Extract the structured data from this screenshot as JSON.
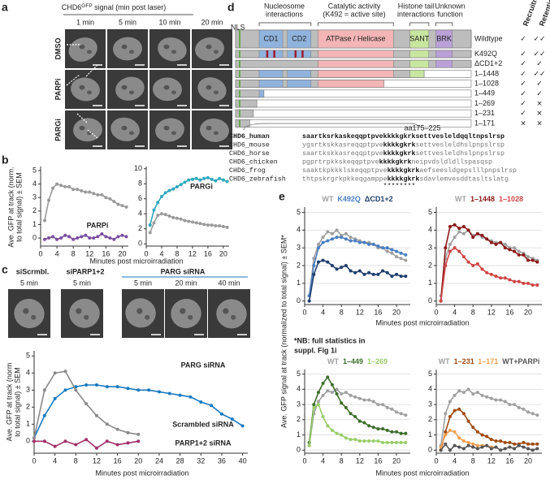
{
  "panels": {
    "a": "a",
    "b": "b",
    "c": "c",
    "d": "d",
    "e": "e"
  },
  "panel_a": {
    "title_main": "CHD6",
    "title_sup": "GFP",
    "title_rest": " signal (min post laser)",
    "columns": [
      "1 min",
      "5 min",
      "10 min",
      "20 min"
    ],
    "rows": [
      {
        "label": "DMSO",
        "color": "#888888"
      },
      {
        "label": "PARPi",
        "color": "#7b4fa0"
      },
      {
        "label": "PARGi",
        "color": "#2fa8bc"
      }
    ]
  },
  "panel_c": {
    "groups": [
      {
        "label": "siScrmbl.",
        "color": "#222222"
      },
      {
        "label": "siPARP1+2",
        "color": "#a0306a"
      },
      {
        "label": "PARG siRNA",
        "color": "#1a7ac0"
      }
    ],
    "image_labels": [
      "5 min",
      "5 min",
      "5 min",
      "20 min",
      "40 min"
    ]
  },
  "panel_d": {
    "nls": "NLS",
    "annotations": [
      [
        "Nucleosome",
        "interactions"
      ],
      [
        "Catalytic activity",
        "(K492 = active site)"
      ],
      [
        "Histone tail",
        "interactions"
      ],
      [
        "Unknown",
        "function"
      ]
    ],
    "domains": [
      "CD1",
      "CD2",
      "ATPase / Helicase",
      "SANT",
      "BRK"
    ],
    "columns": [
      "Recruitment",
      "Retention"
    ],
    "constructs": [
      {
        "name": "Wildtype",
        "recruitment": "✓",
        "retention": "✓✓"
      },
      {
        "name": "K492Q",
        "recruitment": "✓",
        "retention": "✓✓"
      },
      {
        "name": "ΔCD1+2",
        "recruitment": "✓",
        "retention": "✓"
      },
      {
        "name": "1–1448",
        "recruitment": "✓",
        "retention": "✓✓"
      },
      {
        "name": "1–1028",
        "recruitment": "✓",
        "retention": "✓"
      },
      {
        "name": "1–449",
        "recruitment": "✓",
        "retention": "✓"
      },
      {
        "name": "1–269",
        "recruitment": "✓",
        "retention": "×"
      },
      {
        "name": "1–231",
        "recruitment": "✓",
        "retention": "×"
      },
      {
        "name": "1–171",
        "recruitment": "×",
        "retention": "×"
      }
    ],
    "alignment": {
      "range": "aa175–225",
      "species": [
        {
          "name": "CHD6_human",
          "sequence": [
            "saartksrkaskeqqptpve",
            "kkkkgkrk",
            "settvesleldqqltnpslrsp"
          ]
        },
        {
          "name": "CHD6_mouse",
          "sequence": [
            "ygsrtkskkasreqqptpve",
            "kkkkgkrk",
            "settvesleldhslpnpslrsp"
          ]
        },
        {
          "name": "CHD6_horse",
          "sequence": [
            "saartkskkasreqqptpve",
            "kkkkgkrk",
            "settvesleldhslpnpslrsp"
          ]
        },
        {
          "name": "CHD6_chicken",
          "sequence": [
            "pgprtrpkkskeqqptpve",
            "kkkkgkrk",
            "neipvdsldldllspasqsp"
          ]
        },
        {
          "name": "CHD6_frog",
          "sequence": [
            "saaktkpkkklskeqqptpve",
            "kkkkgkrk",
            "aefseesldgepslllpnpslrsp"
          ]
        },
        {
          "name": "CHD6_zebrafish",
          "sequence": [
            "thtpskrgrkpkkeqgamppe",
            "kkkkgkrk",
            "sdavlemvesddtasltslatg"
          ]
        }
      ],
      "conservation": "********"
    }
  },
  "note": {
    "line1": "*NB: full statistics in",
    "line2": "suppl. Fig 1i"
  },
  "chart_data": [
    {
      "type": "line",
      "ylabel": [
        "Ave. GFP at track (norm.",
        "to total signal) ± SEM"
      ],
      "xlabel": "Minutes post microirradiation",
      "x": [
        1,
        2,
        3,
        4,
        5,
        6,
        7,
        8,
        9,
        10,
        11,
        12,
        13,
        14,
        15,
        16,
        17,
        18,
        19,
        20,
        21
      ],
      "xlim": [
        0,
        21.5
      ],
      "xticks": [
        0,
        4,
        8,
        12,
        16,
        20
      ],
      "ylim": [
        -0.6,
        5.3
      ],
      "yticks": [
        0,
        1,
        2,
        3,
        4,
        5
      ],
      "grid": false,
      "series": [
        {
          "color": "#9a9a9a",
          "values": [
            1.3,
            2.8,
            3.7,
            4.0,
            3.9,
            3.8,
            3.8,
            3.6,
            3.6,
            3.5,
            3.4,
            3.4,
            3.3,
            3.2,
            3.2,
            3.0,
            2.9,
            2.7,
            2.5,
            2.4,
            2.3
          ]
        },
        {
          "name": "PARPi",
          "color": "#7b4fa0",
          "values": [
            -0.1,
            0,
            0.1,
            -0.1,
            0,
            0.2,
            0.1,
            -0.1,
            0,
            0.1,
            0.2,
            0,
            0,
            0.1,
            0.3,
            0.1,
            0,
            -0.1,
            0.1,
            0.2,
            0.1
          ]
        }
      ]
    },
    {
      "type": "line",
      "x": [
        1,
        2,
        3,
        4,
        5,
        6,
        7,
        8,
        9,
        10,
        11,
        12,
        13,
        14,
        15,
        16,
        17,
        18,
        19,
        20,
        21
      ],
      "xlim": [
        0,
        21.5
      ],
      "xticks": [
        0,
        4,
        8,
        12,
        16,
        20
      ],
      "ylim": [
        -0.3,
        10.3
      ],
      "yticks": [
        0,
        2,
        4,
        6,
        8,
        10
      ],
      "grid": false,
      "series": [
        {
          "color": "#9a9a9a",
          "values": [
            1.5,
            2.8,
            3.8,
            4.0,
            3.9,
            3.7,
            3.5,
            3.4,
            3.3,
            3.1,
            3.0,
            2.9,
            2.8,
            2.7,
            2.6,
            2.5,
            2.5,
            2.4,
            2.4,
            2.3,
            2.2
          ]
        },
        {
          "name": "PARGi",
          "color": "#2fa8bc",
          "values": [
            2.5,
            4.5,
            5.5,
            6.3,
            6.8,
            7.1,
            7.3,
            7.6,
            7.9,
            8.2,
            8.5,
            8.6,
            8.7,
            8.5,
            8.7,
            8.8,
            8.6,
            8.4,
            8.7,
            8.5,
            8.3
          ]
        }
      ]
    },
    {
      "type": "line",
      "ylabel": [
        "Ave. GFP at track (norm",
        "to total signal) ± SEM"
      ],
      "xlabel": "Minutes post microirradiation",
      "x": [
        0,
        2,
        4,
        6,
        8,
        10,
        12,
        14,
        16,
        18,
        20,
        22,
        24,
        26,
        28,
        30,
        32,
        34,
        36,
        38,
        40
      ],
      "xlim": [
        0,
        41
      ],
      "xticks": [
        0,
        4,
        8,
        12,
        16,
        20,
        24,
        28,
        32,
        36,
        40
      ],
      "ylim": [
        -0.7,
        5.3
      ],
      "yticks": [
        0,
        1,
        2,
        3,
        4,
        5
      ],
      "grid": false,
      "series": [
        {
          "name": "PARG siRNA",
          "color": "#1a7ac0",
          "values": [
            0.2,
            1.5,
            2.5,
            3.0,
            3.2,
            3.3,
            3.3,
            3.2,
            3.2,
            3.1,
            3.0,
            3.0,
            2.9,
            2.8,
            2.7,
            2.6,
            2.3,
            2.1,
            1.6,
            1.3,
            0.9
          ]
        },
        {
          "name": "Scrambled siRNA",
          "color": "#8a8a8a",
          "values": [
            0.2,
            3.0,
            4.0,
            4.1,
            3.0,
            2.2,
            1.5,
            1.0,
            0.7,
            0.5,
            0.4,
            null,
            null,
            null,
            null,
            null,
            null,
            null,
            null,
            null,
            null
          ]
        },
        {
          "name": "PARP1+2 siRNA",
          "color": "#a0306a",
          "values": [
            0,
            0,
            -0.3,
            0,
            -0.2,
            0.1,
            -0.4,
            0,
            -0.2,
            -0.1,
            0,
            null,
            null,
            null,
            null,
            null,
            null,
            null,
            null,
            null,
            null
          ]
        }
      ]
    },
    {
      "type": "line",
      "ylabel": "Ave. GFP signal at track (normalized to total signal) ± SEM*",
      "xlabel": "Minutes post microirradiation",
      "x": [
        1,
        2,
        3,
        4,
        5,
        6,
        7,
        8,
        9,
        10,
        11,
        12,
        13,
        14,
        15,
        16,
        17,
        18,
        19,
        20,
        21,
        22
      ],
      "xlim": [
        0,
        23
      ],
      "xticks": [
        0,
        4,
        8,
        12,
        16,
        20
      ],
      "ylim": [
        -0.2,
        5.3
      ],
      "yticks": [
        0,
        1,
        2,
        3,
        4,
        5
      ],
      "grid": true,
      "series": [
        {
          "name": "WT",
          "color": "#a0a0a0",
          "values": [
            0.3,
            2.4,
            3.2,
            3.6,
            3.9,
            3.8,
            4.0,
            3.7,
            3.8,
            3.6,
            3.5,
            3.4,
            3.3,
            3.3,
            3.2,
            3.0,
            3.0,
            2.8,
            2.7,
            2.5,
            2.4,
            2.3
          ]
        },
        {
          "name": "K492Q",
          "color": "#4a7fc0",
          "values": [
            0.3,
            2.0,
            3.0,
            3.3,
            3.4,
            3.5,
            3.6,
            3.6,
            3.5,
            3.4,
            3.4,
            3.3,
            3.3,
            3.2,
            3.2,
            3.1,
            3.0,
            3.0,
            2.9,
            2.8,
            2.7,
            2.6
          ]
        },
        {
          "name": "ΔCD1+2",
          "color": "#1f3f6e",
          "values": [
            0,
            1.5,
            2.2,
            2.3,
            2.2,
            2.0,
            1.8,
            1.9,
            2.0,
            1.7,
            1.6,
            1.7,
            1.5,
            1.6,
            1.5,
            1.5,
            1.7,
            1.6,
            1.4,
            1.5,
            1.4,
            1.4
          ]
        }
      ]
    },
    {
      "type": "line",
      "x": [
        1,
        2,
        3,
        4,
        5,
        6,
        7,
        8,
        9,
        10,
        11,
        12,
        13,
        14,
        15,
        16,
        17,
        18,
        19,
        20,
        21,
        22
      ],
      "xlim": [
        0,
        23
      ],
      "xticks": [
        0,
        4,
        8,
        12,
        16,
        20
      ],
      "ylim": [
        -0.2,
        5.3
      ],
      "yticks": [
        0,
        1,
        2,
        3,
        4,
        5
      ],
      "grid": true,
      "series": [
        {
          "name": "WT",
          "color": "#a0a0a0",
          "values": [
            0.3,
            2.4,
            3.2,
            3.6,
            3.9,
            3.8,
            4.0,
            3.7,
            3.8,
            3.6,
            3.5,
            3.4,
            3.3,
            3.3,
            3.2,
            3.0,
            3.0,
            2.8,
            2.7,
            2.5,
            2.4,
            2.3
          ]
        },
        {
          "name": "1–1448",
          "color": "#8b1a1a",
          "values": [
            0,
            3.0,
            4.2,
            4.3,
            4.1,
            4.2,
            4.0,
            3.6,
            3.8,
            3.7,
            3.5,
            3.3,
            3.2,
            3.3,
            3.0,
            2.9,
            2.8,
            2.6,
            2.6,
            2.3,
            2.3,
            2.2
          ]
        },
        {
          "name": "1–1028",
          "color": "#d04545",
          "values": [
            0,
            2.0,
            2.8,
            3.0,
            2.8,
            2.5,
            2.2,
            2.0,
            2.1,
            1.8,
            1.6,
            1.5,
            1.4,
            1.3,
            1.3,
            1.2,
            1.1,
            1.1,
            1.0,
            1.0,
            0.9,
            0.9
          ]
        }
      ]
    },
    {
      "type": "line",
      "xlabel": "Minutes post microirradiation",
      "x": [
        1,
        2,
        3,
        4,
        5,
        6,
        7,
        8,
        9,
        10,
        11,
        12,
        13,
        14,
        15,
        16,
        17,
        18,
        19,
        20,
        21,
        22
      ],
      "xlim": [
        0,
        23
      ],
      "xticks": [
        0,
        4,
        8,
        12,
        16,
        20
      ],
      "ylim": [
        -0.2,
        5.3
      ],
      "yticks": [
        0,
        1,
        2,
        3,
        4,
        5
      ],
      "grid": true,
      "series": [
        {
          "name": "WT",
          "color": "#a0a0a0",
          "values": [
            0.3,
            2.4,
            3.2,
            3.6,
            3.9,
            3.8,
            4.0,
            3.7,
            3.8,
            3.6,
            3.5,
            3.4,
            3.3,
            3.3,
            3.2,
            3.0,
            3.0,
            2.8,
            2.7,
            2.5,
            2.4,
            2.3
          ]
        },
        {
          "name": "1–449",
          "color": "#3e6e2a",
          "values": [
            0.5,
            3.0,
            3.8,
            4.4,
            4.8,
            4.3,
            3.7,
            3.1,
            2.8,
            2.4,
            2.2,
            1.9,
            1.8,
            1.6,
            1.5,
            1.4,
            1.4,
            1.3,
            1.2,
            1.2,
            1.1,
            1.1
          ]
        },
        {
          "name": "1–269",
          "color": "#9acd6a",
          "values": [
            0.3,
            2.8,
            3.0,
            2.2,
            1.6,
            1.3,
            1.1,
            1.0,
            0.8,
            0.7,
            0.7,
            0.6,
            0.6,
            0.6,
            0.6,
            0.6,
            0.5,
            0.5,
            0.5,
            0.5,
            0.5,
            0.5
          ]
        }
      ]
    },
    {
      "type": "line",
      "x": [
        1,
        2,
        3,
        4,
        5,
        6,
        7,
        8,
        9,
        10,
        11,
        12,
        13,
        14,
        15,
        16,
        17,
        18,
        19,
        20,
        21,
        22
      ],
      "xlim": [
        0,
        23
      ],
      "xticks": [
        0,
        4,
        8,
        12,
        16,
        20
      ],
      "ylim": [
        -0.2,
        5.3
      ],
      "yticks": [
        0,
        1,
        2,
        3,
        4,
        5
      ],
      "grid": true,
      "series": [
        {
          "name": "WT",
          "color": "#a0a0a0",
          "values": [
            0.3,
            2.4,
            3.2,
            3.6,
            3.9,
            3.8,
            4.0,
            3.7,
            3.8,
            3.6,
            3.5,
            3.4,
            3.3,
            3.3,
            3.2,
            3.0,
            3.0,
            2.8,
            2.7,
            2.5,
            2.4,
            2.3
          ]
        },
        {
          "name": "1–231",
          "color": "#a04a10",
          "values": [
            0,
            1.2,
            2.2,
            2.6,
            2.7,
            2.4,
            1.9,
            1.5,
            1.2,
            1.0,
            0.9,
            0.7,
            0.6,
            0.6,
            0.5,
            0.5,
            0.4,
            0.4,
            0.5,
            0.4,
            0.4,
            0.4
          ]
        },
        {
          "name": "1–171",
          "color": "#f0a050",
          "values": [
            0.2,
            1.0,
            1.3,
            1.2,
            0.8,
            0.6,
            0.5,
            0.4,
            0.3,
            0.3,
            0.3,
            0.2,
            0.2,
            null,
            null,
            null,
            null,
            null,
            null,
            null,
            null,
            null
          ]
        },
        {
          "name": "WT+PARPi",
          "color": "#555555",
          "values": [
            0,
            0.4,
            0,
            0.3,
            0.2,
            0.1,
            0.3,
            0.2,
            0.1,
            0.2,
            0.3,
            0.1,
            0.2,
            0.0,
            0.1,
            0.2,
            0.1,
            0.3,
            0.2,
            0.1,
            0.0,
            0.1
          ]
        }
      ]
    }
  ]
}
